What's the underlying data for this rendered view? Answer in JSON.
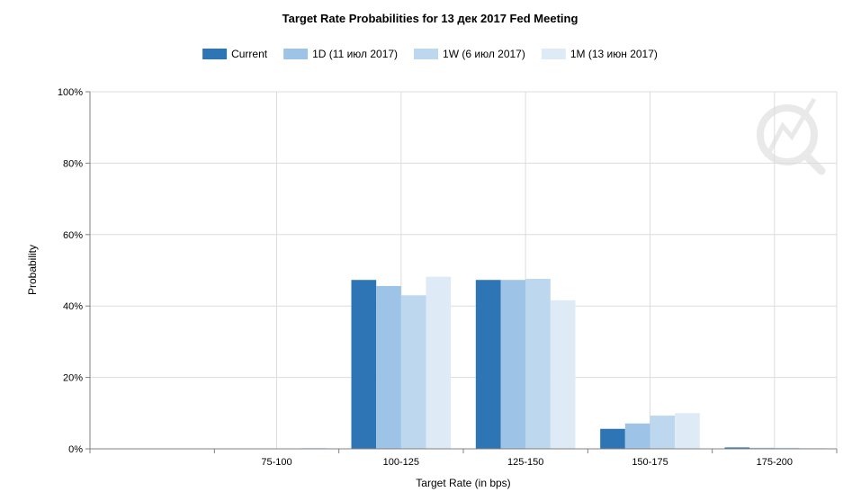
{
  "chart_data": {
    "type": "bar",
    "title": "Target Rate Probabilities for 13 дек 2017 Fed Meeting",
    "xlabel": "Target Rate (in bps)",
    "ylabel": "Probability",
    "categories": [
      "",
      "75-100",
      "100-125",
      "125-150",
      "150-175",
      "175-200"
    ],
    "series": [
      {
        "name": "Current",
        "color": "#2e75b6",
        "values": [
          0,
          0,
          47.3,
          47.3,
          5.6,
          0.4
        ]
      },
      {
        "name": "1D (11 июл 2017)",
        "color": "#9dc3e6",
        "values": [
          0,
          0,
          45.6,
          47.3,
          7.1,
          0.3
        ]
      },
      {
        "name": "1W (6 июл 2017)",
        "color": "#bdd7ee",
        "values": [
          0,
          0,
          43.0,
          47.6,
          9.3,
          0.3
        ]
      },
      {
        "name": "1M (13 июн 2017)",
        "color": "#deebf7",
        "values": [
          0,
          0.3,
          48.2,
          41.6,
          10.0,
          0.2
        ]
      }
    ],
    "yticks": [
      "0%",
      "20%",
      "40%",
      "60%",
      "80%",
      "100%"
    ],
    "ylim": [
      0,
      100
    ],
    "grid": true,
    "legend_position": "top-center"
  }
}
